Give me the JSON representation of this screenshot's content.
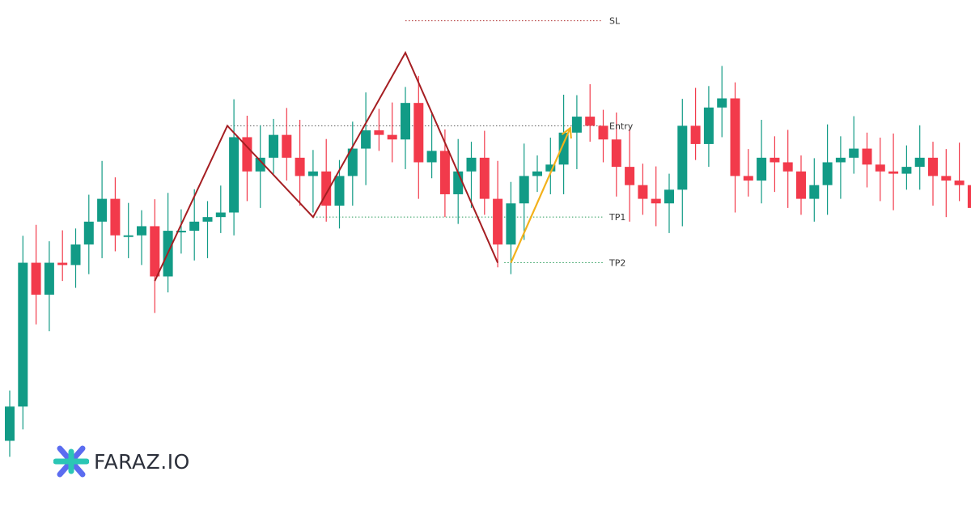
{
  "brand": {
    "name": "FARAZ.IO",
    "logo": "faraz-asterisk-logo",
    "colors": [
      "#2bc6b5",
      "#5b6cf0"
    ]
  },
  "colors": {
    "up": "#129b86",
    "down": "#f23a4b",
    "pattern": "#a51e22",
    "arrow": "#f3b11b",
    "dotted": "#555555"
  },
  "chart_data": {
    "type": "candlestick",
    "y_axis": "not shown",
    "candles": [
      [
        1.7,
        2.45,
        2.45,
        1.7
      ],
      [
        2.45,
        5.6,
        5.6,
        2.45
      ],
      [
        5.6,
        4.9,
        5.6,
        4.9
      ],
      [
        4.9,
        5.6,
        5.6,
        4.9
      ],
      [
        5.6,
        5.55,
        5.6,
        5.55
      ],
      [
        5.55,
        6.0,
        6.0,
        5.55
      ],
      [
        6.0,
        6.5,
        6.5,
        6.0
      ],
      [
        6.5,
        7.0,
        7.0,
        6.5
      ],
      [
        7.0,
        6.2,
        7.0,
        6.2
      ],
      [
        6.2,
        6.2,
        6.2,
        6.2
      ],
      [
        6.2,
        6.4,
        6.4,
        6.2
      ],
      [
        6.4,
        5.3,
        6.4,
        5.3
      ],
      [
        5.3,
        6.3,
        6.3,
        5.3
      ],
      [
        6.3,
        6.3,
        6.3,
        6.3
      ],
      [
        6.3,
        6.5,
        6.5,
        6.3
      ],
      [
        6.5,
        6.6,
        6.6,
        6.5
      ],
      [
        6.6,
        6.7,
        6.7,
        6.6
      ],
      [
        6.7,
        8.35,
        8.35,
        6.7
      ],
      [
        8.35,
        7.6,
        8.35,
        7.6
      ],
      [
        7.6,
        7.9,
        7.9,
        7.6
      ],
      [
        7.9,
        8.4,
        8.4,
        7.9
      ],
      [
        8.4,
        7.9,
        8.4,
        7.9
      ],
      [
        7.9,
        7.5,
        7.9,
        7.5
      ],
      [
        7.5,
        7.6,
        7.6,
        7.5
      ],
      [
        7.6,
        6.85,
        7.6,
        6.85
      ],
      [
        6.85,
        7.5,
        7.5,
        6.85
      ],
      [
        7.5,
        8.1,
        8.1,
        7.5
      ],
      [
        8.1,
        8.5,
        8.5,
        8.1
      ],
      [
        8.5,
        8.4,
        8.4,
        8.5
      ],
      [
        8.4,
        8.3,
        8.4,
        8.3
      ],
      [
        8.3,
        9.1,
        9.1,
        8.3
      ],
      [
        9.1,
        7.8,
        9.1,
        7.8
      ],
      [
        7.8,
        8.05,
        8.05,
        7.8
      ],
      [
        8.05,
        7.1,
        8.05,
        7.1
      ],
      [
        7.1,
        7.6,
        7.6,
        7.1
      ],
      [
        7.6,
        7.9,
        7.9,
        7.6
      ],
      [
        7.9,
        7.0,
        7.9,
        7.0
      ],
      [
        7.0,
        6.0,
        7.0,
        6.0
      ],
      [
        6.0,
        6.9,
        6.9,
        6.0
      ],
      [
        6.9,
        7.5,
        7.5,
        6.9
      ],
      [
        7.5,
        7.6,
        7.6,
        7.5
      ],
      [
        7.6,
        7.75,
        7.75,
        7.6
      ],
      [
        7.75,
        8.45,
        8.45,
        7.75
      ],
      [
        8.45,
        8.8,
        8.8,
        8.45
      ],
      [
        8.8,
        8.6,
        8.6,
        8.8
      ],
      [
        8.6,
        8.3,
        8.6,
        8.3
      ],
      [
        8.3,
        7.7,
        8.3,
        7.7
      ],
      [
        7.7,
        7.3,
        7.7,
        7.3
      ],
      [
        7.3,
        7.0,
        7.3,
        7.0
      ],
      [
        7.0,
        6.9,
        7.0,
        6.9
      ],
      [
        6.9,
        7.2,
        7.2,
        6.9
      ],
      [
        7.2,
        8.6,
        8.6,
        7.2
      ],
      [
        8.6,
        8.2,
        8.6,
        8.2
      ],
      [
        8.2,
        9.0,
        9.0,
        8.2
      ],
      [
        9.0,
        9.2,
        9.2,
        9.0
      ],
      [
        9.2,
        7.5,
        9.2,
        7.5
      ],
      [
        7.5,
        7.4,
        7.5,
        7.4
      ],
      [
        7.4,
        7.9,
        7.9,
        7.4
      ],
      [
        7.9,
        7.8,
        7.9,
        7.8
      ],
      [
        7.8,
        7.6,
        7.8,
        7.6
      ],
      [
        7.6,
        7.0,
        7.6,
        7.0
      ],
      [
        7.0,
        7.3,
        7.3,
        7.0
      ],
      [
        7.3,
        7.8,
        7.8,
        7.3
      ],
      [
        7.8,
        7.9,
        7.9,
        7.8
      ],
      [
        7.9,
        8.1,
        8.1,
        7.9
      ],
      [
        8.1,
        7.75,
        8.1,
        7.75
      ],
      [
        7.75,
        7.6,
        7.75,
        7.6
      ],
      [
        7.6,
        7.55,
        7.6,
        7.55
      ],
      [
        7.55,
        7.7,
        7.7,
        7.55
      ],
      [
        7.7,
        7.9,
        7.9,
        7.7
      ],
      [
        7.9,
        7.5,
        7.9,
        7.5
      ],
      [
        7.5,
        7.4,
        7.5,
        7.4
      ],
      [
        7.4,
        7.3,
        7.3,
        7.4
      ],
      [
        7.3,
        6.8,
        7.3,
        6.8
      ]
    ],
    "pattern_points": [
      [
        11,
        5.2
      ],
      [
        16.5,
        8.6
      ],
      [
        23,
        6.6
      ],
      [
        30,
        10.2
      ],
      [
        37,
        5.6
      ]
    ],
    "projection": {
      "from": [
        38,
        5.6
      ],
      "to": [
        42.5,
        8.55
      ]
    },
    "levels": [
      {
        "label": "SL",
        "value": 10.9,
        "from": 30
      },
      {
        "label": "Entry",
        "value": 8.6,
        "from": 16.5
      },
      {
        "label": "TP1",
        "value": 6.6,
        "from": 23
      },
      {
        "label": "TP2",
        "value": 5.6,
        "from": 37.5
      }
    ]
  }
}
